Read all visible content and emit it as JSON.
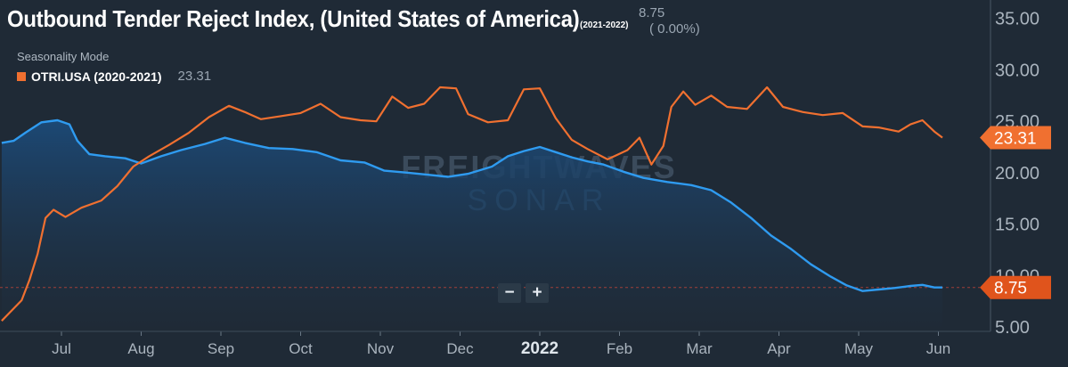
{
  "header": {
    "title": "Outbound Tender Reject Index, (United States of America)",
    "title_range": "(2021-2022)",
    "current_value": "8.75",
    "current_change": "( 0.00%)",
    "mode_label": "Seasonality Mode",
    "legend_label": "OTRI.USA (2020-2021)",
    "legend_value": "23.31"
  },
  "zoom": {
    "minus": "−",
    "plus": "+"
  },
  "watermark": {
    "brand": "FREIGHTWAVES",
    "product": "SONAR"
  },
  "colors": {
    "background": "#1f2a36",
    "series_current": "#2f9bf0",
    "series_prior": "#f07030",
    "area_fill_top": "#1c4a78",
    "value_tag_current": "#e0541c",
    "value_tag_prior": "#f07030"
  },
  "chart_data": {
    "type": "area",
    "ylim": [
      5,
      36
    ],
    "y_ticks": [
      "5.00",
      "10.00",
      "15.00",
      "20.00",
      "25.00",
      "30.00",
      "35.00"
    ],
    "x_ticks": [
      "Jul",
      "Aug",
      "Sep",
      "Oct",
      "Nov",
      "Dec",
      "2022",
      "Feb",
      "Mar",
      "Apr",
      "May",
      "Jun"
    ],
    "x_tick_pos": [
      0.5,
      1.5,
      2.5,
      3.5,
      4.5,
      5.5,
      6.5,
      7.5,
      8.5,
      9.5,
      10.5,
      11.5
    ],
    "x_range": [
      -0.25,
      11.55
    ],
    "reference_line": 8.75,
    "series": [
      {
        "name": "",
        "style": "area",
        "last_label": "8.75",
        "points": [
          [
            -0.25,
            22.8
          ],
          [
            -0.1,
            23.0
          ],
          [
            0.05,
            23.8
          ],
          [
            0.25,
            24.8
          ],
          [
            0.45,
            25.0
          ],
          [
            0.6,
            24.6
          ],
          [
            0.7,
            23.0
          ],
          [
            0.85,
            21.7
          ],
          [
            1.05,
            21.5
          ],
          [
            1.3,
            21.3
          ],
          [
            1.5,
            20.8
          ],
          [
            1.75,
            21.5
          ],
          [
            2.0,
            22.1
          ],
          [
            2.3,
            22.7
          ],
          [
            2.55,
            23.3
          ],
          [
            2.8,
            22.8
          ],
          [
            3.1,
            22.3
          ],
          [
            3.4,
            22.2
          ],
          [
            3.7,
            21.9
          ],
          [
            4.0,
            21.1
          ],
          [
            4.3,
            20.9
          ],
          [
            4.55,
            20.1
          ],
          [
            4.85,
            19.9
          ],
          [
            5.1,
            19.7
          ],
          [
            5.35,
            19.5
          ],
          [
            5.6,
            19.8
          ],
          [
            5.9,
            20.5
          ],
          [
            6.1,
            21.5
          ],
          [
            6.3,
            22.0
          ],
          [
            6.5,
            22.4
          ],
          [
            6.7,
            21.9
          ],
          [
            6.9,
            21.4
          ],
          [
            7.1,
            21.0
          ],
          [
            7.3,
            20.7
          ],
          [
            7.55,
            20.0
          ],
          [
            7.8,
            19.4
          ],
          [
            8.1,
            19.0
          ],
          [
            8.4,
            18.7
          ],
          [
            8.65,
            18.2
          ],
          [
            8.9,
            17.0
          ],
          [
            9.15,
            15.5
          ],
          [
            9.4,
            13.8
          ],
          [
            9.65,
            12.5
          ],
          [
            9.9,
            11.0
          ],
          [
            10.15,
            9.8
          ],
          [
            10.35,
            8.95
          ],
          [
            10.55,
            8.4
          ],
          [
            10.75,
            8.55
          ],
          [
            10.95,
            8.7
          ],
          [
            11.15,
            8.9
          ],
          [
            11.3,
            9.0
          ],
          [
            11.45,
            8.75
          ],
          [
            11.55,
            8.75
          ]
        ]
      },
      {
        "name": "OTRI.USA (2020-2021)",
        "style": "line",
        "last_label": "23.31",
        "points": [
          [
            -0.25,
            5.5
          ],
          [
            -0.15,
            6.3
          ],
          [
            0.0,
            7.5
          ],
          [
            0.1,
            9.5
          ],
          [
            0.2,
            12.0
          ],
          [
            0.3,
            15.5
          ],
          [
            0.4,
            16.3
          ],
          [
            0.55,
            15.6
          ],
          [
            0.75,
            16.5
          ],
          [
            1.0,
            17.2
          ],
          [
            1.2,
            18.6
          ],
          [
            1.4,
            20.5
          ],
          [
            1.6,
            21.5
          ],
          [
            1.85,
            22.6
          ],
          [
            2.1,
            23.8
          ],
          [
            2.35,
            25.3
          ],
          [
            2.6,
            26.4
          ],
          [
            2.8,
            25.8
          ],
          [
            3.0,
            25.1
          ],
          [
            3.25,
            25.4
          ],
          [
            3.5,
            25.7
          ],
          [
            3.75,
            26.6
          ],
          [
            4.0,
            25.3
          ],
          [
            4.25,
            25.0
          ],
          [
            4.45,
            24.9
          ],
          [
            4.65,
            27.3
          ],
          [
            4.85,
            26.2
          ],
          [
            5.05,
            26.6
          ],
          [
            5.25,
            28.2
          ],
          [
            5.45,
            28.1
          ],
          [
            5.6,
            25.6
          ],
          [
            5.85,
            24.8
          ],
          [
            6.1,
            25.0
          ],
          [
            6.3,
            28.0
          ],
          [
            6.5,
            28.1
          ],
          [
            6.7,
            25.2
          ],
          [
            6.9,
            23.1
          ],
          [
            7.1,
            22.2
          ],
          [
            7.35,
            21.2
          ],
          [
            7.6,
            22.1
          ],
          [
            7.75,
            23.3
          ],
          [
            7.9,
            20.7
          ],
          [
            8.05,
            22.5
          ],
          [
            8.15,
            26.3
          ],
          [
            8.3,
            27.8
          ],
          [
            8.45,
            26.5
          ],
          [
            8.65,
            27.4
          ],
          [
            8.85,
            26.3
          ],
          [
            9.1,
            26.1
          ],
          [
            9.35,
            28.2
          ],
          [
            9.55,
            26.3
          ],
          [
            9.8,
            25.8
          ],
          [
            10.05,
            25.5
          ],
          [
            10.3,
            25.7
          ],
          [
            10.55,
            24.4
          ],
          [
            10.75,
            24.3
          ],
          [
            11.0,
            23.9
          ],
          [
            11.15,
            24.6
          ],
          [
            11.3,
            25.0
          ],
          [
            11.45,
            23.9
          ],
          [
            11.55,
            23.31
          ]
        ]
      }
    ],
    "title": "Outbound Tender Reject Index, (United States of America)",
    "xlabel": "",
    "ylabel": "",
    "grid": false,
    "legend": "top-left"
  }
}
